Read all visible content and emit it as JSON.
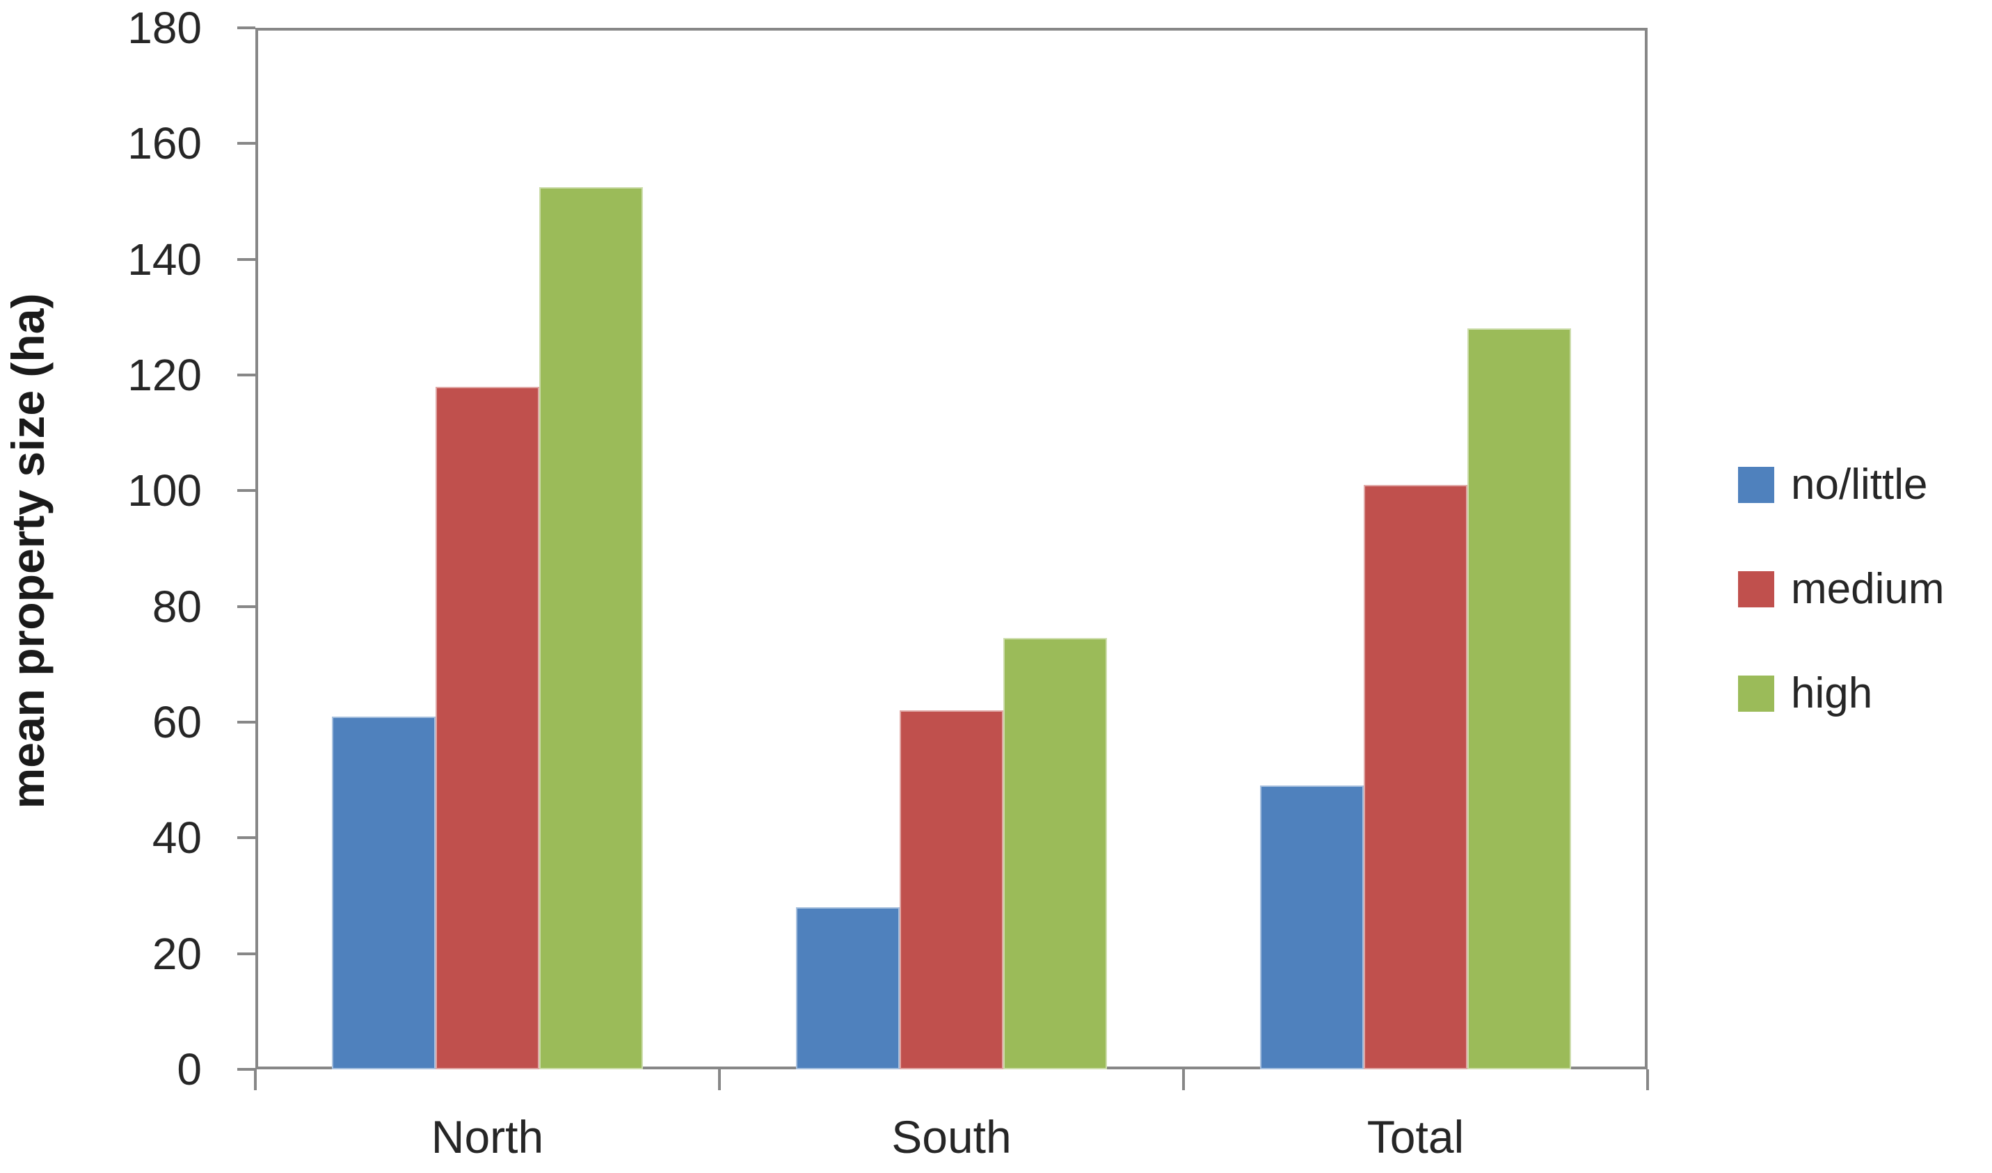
{
  "chart_data": {
    "type": "bar",
    "title": "",
    "xlabel": "",
    "ylabel": "mean property size (ha)",
    "categories": [
      "North",
      "South",
      "Total"
    ],
    "series": [
      {
        "name": "no/little",
        "color": "#4F81BD",
        "values": [
          61,
          28,
          49
        ]
      },
      {
        "name": "medium",
        "color": "#C0504D",
        "values": [
          118,
          62,
          101
        ]
      },
      {
        "name": "high",
        "color": "#9BBB59",
        "values": [
          152.5,
          74.5,
          128
        ]
      }
    ],
    "ylim": [
      0,
      180
    ],
    "ytick_step": 20,
    "ytick_labels": [
      "180",
      "160",
      "140",
      "120",
      "100",
      "80",
      "60",
      "40",
      "20",
      "0"
    ],
    "grid": false,
    "legend_position": "right",
    "axis_color": "#878787",
    "text_color": "#262626"
  }
}
